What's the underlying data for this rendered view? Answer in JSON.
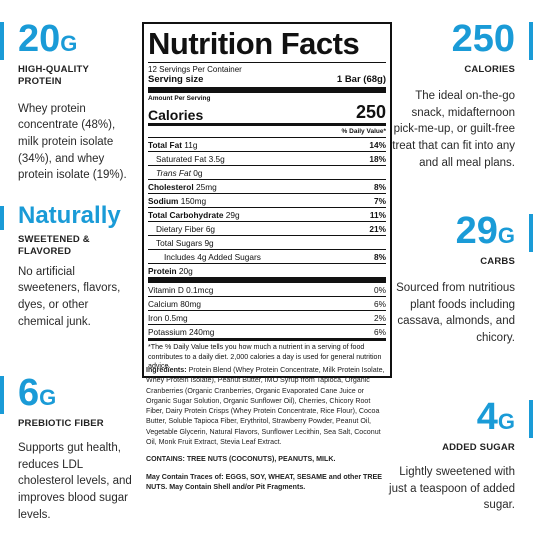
{
  "callouts": {
    "protein": {
      "value": "20",
      "unit": "G",
      "label_line1": "HIGH-QUALITY",
      "label_line2": "PROTEIN",
      "desc": "Whey protein concentrate (48%), milk protein isolate (34%), and whey protein isolate (19%)."
    },
    "sweetened": {
      "value": "Naturally",
      "label_line1": "SWEETENED &",
      "label_line2": "FLAVORED",
      "desc": "No artificial sweeteners, flavors, dyes, or other chemical junk."
    },
    "fiber": {
      "value": "6",
      "unit": "G",
      "label": "PREBIOTIC FIBER",
      "desc": "Supports gut health, reduces LDL cholesterol levels, and improves blood sugar levels."
    },
    "calories": {
      "value": "250",
      "label": "CALORIES",
      "desc": "The ideal on-the-go snack, midafternoon pick-me-up, or guilt-free treat that can fit into any and all meal plans."
    },
    "carbs": {
      "value": "29",
      "unit": "G",
      "label": "CARBS",
      "desc": "Sourced from nutritious plant foods including cassava, almonds, and chicory."
    },
    "sugar": {
      "value": "4",
      "unit": "G",
      "label": "ADDED SUGAR",
      "desc": "Lightly sweetened with just a teaspoon of added sugar."
    }
  },
  "panel": {
    "title": "Nutrition Facts",
    "servings": "12 Servings Per Container",
    "serving_size_label": "Serving size",
    "serving_size_value": "1 Bar (68g)",
    "amount_per_serving": "Amount Per Serving",
    "calories_label": "Calories",
    "calories_value": "250",
    "dv_header": "% Daily Value*",
    "rows": [
      {
        "label": "Total Fat",
        "amount": "11g",
        "dv": "14%"
      },
      {
        "label": "Saturated Fat",
        "amount": "3.5g",
        "dv": "18%"
      },
      {
        "label": "Trans Fat",
        "amount": "0g",
        "dv": ""
      },
      {
        "label": "Cholesterol",
        "amount": "25mg",
        "dv": "8%"
      },
      {
        "label": "Sodium",
        "amount": "150mg",
        "dv": "7%"
      },
      {
        "label": "Total Carbohydrate",
        "amount": "29g",
        "dv": "11%"
      },
      {
        "label": "Dietary Fiber",
        "amount": "6g",
        "dv": "21%"
      },
      {
        "label": "Total Sugars",
        "amount": "9g",
        "dv": ""
      },
      {
        "label": "Includes 4g Added Sugars",
        "amount": "",
        "dv": "8%"
      },
      {
        "label": "Protein",
        "amount": "20g",
        "dv": ""
      }
    ],
    "vitamins": [
      {
        "label": "Vitamin D 0.1mcg",
        "dv": "0%"
      },
      {
        "label": "Calcium 80mg",
        "dv": "6%"
      },
      {
        "label": "Iron 0.5mg",
        "dv": "2%"
      },
      {
        "label": "Potassium 240mg",
        "dv": "6%"
      }
    ],
    "footnote": "*The % Daily Value tells you how much a nutrient in a serving of food contributes to a daily diet. 2,000 calories a day is used for general nutrition advice."
  },
  "ingredients": {
    "label": "Ingredients:",
    "text": "Protein Blend (Whey Protein Concentrate, Milk Protein Isolate, Whey Protein Isolate), Peanut Butter, IMO Syrup from Tapioca, Organic Cranberries (Organic Cranberries, Organic Evaporated Cane Juice or Organic Sugar Solution, Organic Sunflower Oil), Cherries, Chicory Root Fiber, Dairy Protein Crisps (Whey Protein Concentrate, Rice Flour), Cocoa Butter, Soluble Tapioca Fiber, Erythritol, Strawberry Powder, Peanut Oil, Vegetable Glycerin, Natural Flavors, Sunflower Lecithin, Sea Salt, Coconut Oil, Monk Fruit Extract, Stevia Leaf Extract.",
    "contains": "CONTAINS: TREE NUTS (COCONUTS), PEANUTS, MILK.",
    "traces": "May Contain Traces of: EGGS, SOY, WHEAT, SESAME and other TREE NUTS. May Contain Shell and/or Pit Fragments."
  },
  "colors": {
    "accent": "#1a9bd7",
    "text": "#1f1f1f"
  }
}
